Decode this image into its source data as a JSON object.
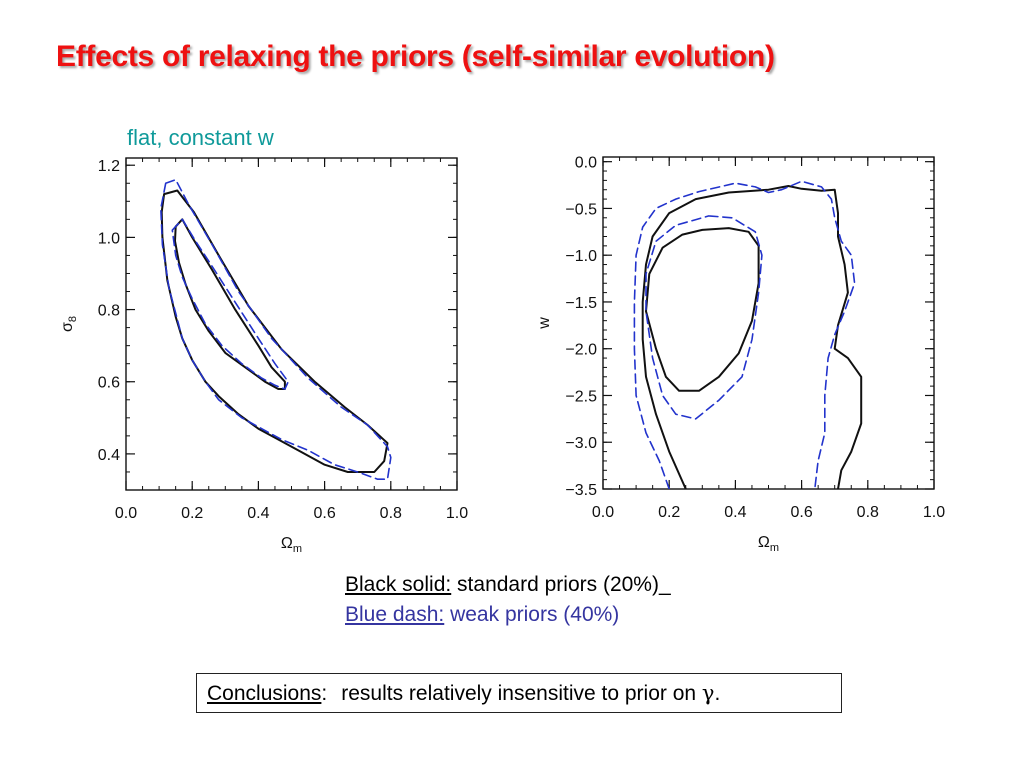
{
  "slide": {
    "title": "Effects of relaxing the priors (self-similar evolution)",
    "subtitle": "flat, constant w",
    "colors": {
      "title": "#ee1111",
      "subtitle": "#0f9a9a",
      "solid": "#111111",
      "dash": "#2233cc",
      "legend_blue": "#3535a0"
    }
  },
  "legend": {
    "black_label": "Black solid:",
    "black_text": " standard priors (20%)_",
    "blue_label": "Blue dash:",
    "blue_text": " weak priors (40%)"
  },
  "conclusions": {
    "label": "Conclusions",
    "colon": ":",
    "text": "results relatively insensitive to prior on ",
    "symbol": "γ",
    "period": "."
  },
  "chart_data": [
    {
      "type": "line",
      "xlabel": "Ωm",
      "ylabel": "σ8",
      "xlim": [
        0.0,
        1.0
      ],
      "ylim": [
        0.3,
        1.22
      ],
      "xticks": [
        "0.0",
        "0.2",
        "0.4",
        "0.6",
        "0.8",
        "1.0"
      ],
      "yticks": [
        "0.4",
        "0.6",
        "0.8",
        "1.0",
        "1.2"
      ],
      "series": [
        {
          "style": "solid",
          "values": [
            [
              0.115,
              1.12
            ],
            [
              0.155,
              1.13
            ],
            [
              0.205,
              1.07
            ],
            [
              0.28,
              0.95
            ],
            [
              0.37,
              0.81
            ],
            [
              0.47,
              0.69
            ],
            [
              0.57,
              0.6
            ],
            [
              0.66,
              0.53
            ],
            [
              0.73,
              0.48
            ],
            [
              0.79,
              0.43
            ],
            [
              0.78,
              0.38
            ],
            [
              0.75,
              0.35
            ],
            [
              0.67,
              0.35
            ],
            [
              0.6,
              0.37
            ],
            [
              0.52,
              0.41
            ],
            [
              0.46,
              0.44
            ],
            [
              0.4,
              0.47
            ],
            [
              0.34,
              0.51
            ],
            [
              0.28,
              0.56
            ],
            [
              0.24,
              0.6
            ],
            [
              0.2,
              0.66
            ],
            [
              0.17,
              0.72
            ],
            [
              0.15,
              0.78
            ],
            [
              0.125,
              0.88
            ],
            [
              0.11,
              1.0
            ],
            [
              0.108,
              1.07
            ],
            [
              0.115,
              1.12
            ]
          ]
        },
        {
          "style": "solid",
          "values": [
            [
              0.15,
              1.03
            ],
            [
              0.17,
              1.05
            ],
            [
              0.2,
              1.0
            ],
            [
              0.26,
              0.91
            ],
            [
              0.33,
              0.8
            ],
            [
              0.4,
              0.7
            ],
            [
              0.44,
              0.64
            ],
            [
              0.48,
              0.6
            ],
            [
              0.48,
              0.58
            ],
            [
              0.46,
              0.58
            ],
            [
              0.42,
              0.6
            ],
            [
              0.36,
              0.64
            ],
            [
              0.3,
              0.68
            ],
            [
              0.25,
              0.74
            ],
            [
              0.21,
              0.8
            ],
            [
              0.18,
              0.87
            ],
            [
              0.16,
              0.93
            ],
            [
              0.148,
              0.99
            ],
            [
              0.15,
              1.03
            ]
          ]
        },
        {
          "style": "dash",
          "values": [
            [
              0.12,
              1.15
            ],
            [
              0.15,
              1.16
            ],
            [
              0.19,
              1.09
            ],
            [
              0.26,
              0.98
            ],
            [
              0.34,
              0.85
            ],
            [
              0.44,
              0.72
            ],
            [
              0.55,
              0.61
            ],
            [
              0.65,
              0.53
            ],
            [
              0.73,
              0.48
            ],
            [
              0.79,
              0.42
            ],
            [
              0.8,
              0.39
            ],
            [
              0.79,
              0.33
            ],
            [
              0.76,
              0.33
            ],
            [
              0.7,
              0.35
            ],
            [
              0.63,
              0.37
            ],
            [
              0.55,
              0.41
            ],
            [
              0.47,
              0.44
            ],
            [
              0.41,
              0.47
            ],
            [
              0.35,
              0.5
            ],
            [
              0.28,
              0.55
            ],
            [
              0.24,
              0.6
            ],
            [
              0.2,
              0.66
            ],
            [
              0.17,
              0.72
            ],
            [
              0.15,
              0.79
            ],
            [
              0.13,
              0.86
            ],
            [
              0.11,
              0.98
            ],
            [
              0.105,
              1.08
            ],
            [
              0.12,
              1.15
            ]
          ]
        },
        {
          "style": "dash",
          "values": [
            [
              0.14,
              1.02
            ],
            [
              0.17,
              1.05
            ],
            [
              0.21,
              0.99
            ],
            [
              0.26,
              0.92
            ],
            [
              0.33,
              0.82
            ],
            [
              0.4,
              0.72
            ],
            [
              0.45,
              0.65
            ],
            [
              0.49,
              0.6
            ],
            [
              0.48,
              0.58
            ],
            [
              0.45,
              0.59
            ],
            [
              0.41,
              0.61
            ],
            [
              0.35,
              0.65
            ],
            [
              0.29,
              0.7
            ],
            [
              0.24,
              0.76
            ],
            [
              0.2,
              0.83
            ],
            [
              0.17,
              0.89
            ],
            [
              0.15,
              0.95
            ],
            [
              0.14,
              1.02
            ]
          ]
        }
      ]
    },
    {
      "type": "line",
      "xlabel": "Ωm",
      "ylabel": "w",
      "xlim": [
        0.0,
        1.0
      ],
      "ylim": [
        -3.5,
        0.05
      ],
      "xticks": [
        "0.0",
        "0.2",
        "0.4",
        "0.6",
        "0.8",
        "1.0"
      ],
      "yticks": [
        "0.0",
        "−0.5",
        "−1.0",
        "−1.5",
        "−2.0",
        "−2.5",
        "−3.0",
        "−3.5"
      ],
      "series": [
        {
          "style": "solid",
          "values": [
            [
              0.25,
              -3.5
            ],
            [
              0.2,
              -3.1
            ],
            [
              0.16,
              -2.7
            ],
            [
              0.13,
              -2.3
            ],
            [
              0.12,
              -1.9
            ],
            [
              0.12,
              -1.5
            ],
            [
              0.13,
              -1.1
            ],
            [
              0.15,
              -0.8
            ],
            [
              0.2,
              -0.55
            ],
            [
              0.28,
              -0.4
            ],
            [
              0.38,
              -0.33
            ],
            [
              0.5,
              -0.3
            ],
            [
              0.56,
              -0.26
            ],
            [
              0.6,
              -0.29
            ],
            [
              0.66,
              -0.31
            ],
            [
              0.7,
              -0.3
            ],
            [
              0.71,
              -0.55
            ],
            [
              0.71,
              -0.8
            ],
            [
              0.73,
              -1.1
            ],
            [
              0.74,
              -1.4
            ],
            [
              0.71,
              -1.75
            ],
            [
              0.7,
              -2.0
            ],
            [
              0.74,
              -2.1
            ],
            [
              0.78,
              -2.3
            ],
            [
              0.78,
              -2.8
            ],
            [
              0.75,
              -3.1
            ],
            [
              0.72,
              -3.3
            ],
            [
              0.71,
              -3.5
            ]
          ]
        },
        {
          "style": "solid",
          "values": [
            [
              0.3,
              -0.73
            ],
            [
              0.38,
              -0.71
            ],
            [
              0.44,
              -0.75
            ],
            [
              0.47,
              -0.9
            ],
            [
              0.47,
              -1.3
            ],
            [
              0.45,
              -1.7
            ],
            [
              0.41,
              -2.05
            ],
            [
              0.35,
              -2.3
            ],
            [
              0.29,
              -2.45
            ],
            [
              0.23,
              -2.45
            ],
            [
              0.19,
              -2.3
            ],
            [
              0.16,
              -2.0
            ],
            [
              0.13,
              -1.6
            ],
            [
              0.14,
              -1.2
            ],
            [
              0.18,
              -0.92
            ],
            [
              0.24,
              -0.78
            ],
            [
              0.3,
              -0.73
            ]
          ]
        },
        {
          "style": "dash",
          "values": [
            [
              0.2,
              -3.5
            ],
            [
              0.17,
              -3.2
            ],
            [
              0.13,
              -2.9
            ],
            [
              0.1,
              -2.5
            ],
            [
              0.095,
              -2.0
            ],
            [
              0.095,
              -1.5
            ],
            [
              0.1,
              -1.0
            ],
            [
              0.12,
              -0.7
            ],
            [
              0.16,
              -0.5
            ],
            [
              0.22,
              -0.4
            ],
            [
              0.29,
              -0.32
            ],
            [
              0.4,
              -0.23
            ],
            [
              0.46,
              -0.27
            ],
            [
              0.5,
              -0.33
            ],
            [
              0.54,
              -0.3
            ],
            [
              0.6,
              -0.21
            ],
            [
              0.66,
              -0.27
            ],
            [
              0.69,
              -0.4
            ],
            [
              0.7,
              -0.6
            ],
            [
              0.72,
              -0.85
            ],
            [
              0.75,
              -1.0
            ],
            [
              0.76,
              -1.3
            ],
            [
              0.73,
              -1.6
            ],
            [
              0.7,
              -1.85
            ],
            [
              0.68,
              -2.1
            ],
            [
              0.67,
              -2.5
            ],
            [
              0.67,
              -2.9
            ],
            [
              0.65,
              -3.2
            ],
            [
              0.64,
              -3.5
            ]
          ]
        },
        {
          "style": "dash",
          "values": [
            [
              0.32,
              -0.58
            ],
            [
              0.39,
              -0.6
            ],
            [
              0.46,
              -0.75
            ],
            [
              0.48,
              -1.0
            ],
            [
              0.47,
              -1.4
            ],
            [
              0.45,
              -1.9
            ],
            [
              0.42,
              -2.3
            ],
            [
              0.35,
              -2.55
            ],
            [
              0.28,
              -2.75
            ],
            [
              0.22,
              -2.7
            ],
            [
              0.18,
              -2.5
            ],
            [
              0.15,
              -2.1
            ],
            [
              0.13,
              -1.6
            ],
            [
              0.13,
              -1.2
            ],
            [
              0.16,
              -0.85
            ],
            [
              0.22,
              -0.68
            ],
            [
              0.32,
              -0.58
            ]
          ]
        }
      ]
    }
  ]
}
